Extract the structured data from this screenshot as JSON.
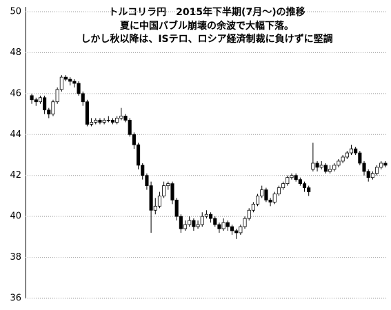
{
  "chart_data": {
    "type": "candlestick",
    "title": "トルコリラ円　2015年下半期(7月～)の推移",
    "subtitle": [
      "夏に中国バブル崩壊の余波で大幅下落。",
      "しかし秋以降は、ISテロ、ロシア経済制裁に負けずに堅調"
    ],
    "ylim": [
      36,
      50
    ],
    "yticks": [
      36,
      38,
      40,
      42,
      44,
      46,
      48,
      50
    ],
    "grid": true,
    "up_color": "#ffffff",
    "down_color": "#000000",
    "open": [
      45.9,
      45.7,
      45.6,
      45.8,
      45.2,
      45.0,
      45.6,
      46.2,
      46.8,
      46.7,
      46.6,
      46.5,
      46.0,
      45.6,
      44.5,
      44.6,
      44.7,
      44.6,
      44.7,
      44.7,
      44.6,
      44.8,
      44.9,
      44.7,
      44.0,
      43.5,
      42.5,
      42.0,
      41.5,
      40.3,
      40.5,
      41.0,
      41.5,
      41.6,
      40.8,
      40.0,
      39.4,
      39.6,
      39.8,
      39.5,
      39.6,
      40.0,
      40.1,
      39.9,
      39.6,
      39.4,
      39.7,
      39.5,
      39.3,
      39.2,
      39.5,
      39.9,
      40.3,
      40.6,
      41.0,
      41.3,
      40.8,
      40.7,
      41.1,
      41.4,
      41.6,
      41.9,
      42.0,
      41.8,
      41.6,
      41.4,
      42.3,
      42.6,
      42.4,
      42.5,
      42.2,
      42.3,
      42.5,
      42.7,
      42.9,
      43.1,
      43.3,
      43.1,
      42.6,
      42.2,
      41.9,
      42.1,
      42.4,
      42.6
    ],
    "high": [
      46.0,
      45.8,
      45.9,
      45.9,
      45.3,
      45.7,
      46.3,
      46.9,
      46.9,
      46.8,
      46.7,
      46.6,
      46.1,
      45.7,
      44.8,
      44.8,
      44.8,
      44.8,
      44.9,
      44.8,
      44.9,
      45.3,
      45.0,
      44.8,
      44.1,
      43.6,
      42.6,
      42.1,
      41.7,
      40.9,
      41.2,
      41.7,
      41.7,
      41.7,
      40.9,
      40.1,
      39.8,
      40.0,
      39.9,
      39.8,
      40.2,
      40.3,
      40.2,
      40.0,
      39.7,
      39.9,
      39.8,
      39.6,
      39.4,
      39.6,
      40.0,
      40.4,
      40.7,
      41.1,
      41.5,
      41.4,
      40.9,
      41.2,
      41.5,
      41.7,
      42.0,
      42.1,
      42.1,
      41.9,
      41.7,
      41.5,
      43.6,
      42.7,
      42.7,
      42.6,
      42.5,
      42.6,
      42.8,
      43.0,
      43.2,
      43.5,
      43.4,
      43.2,
      42.7,
      42.3,
      42.2,
      42.5,
      42.7,
      42.7
    ],
    "low": [
      45.5,
      45.4,
      45.5,
      45.0,
      44.8,
      44.9,
      45.5,
      46.1,
      46.6,
      46.4,
      46.3,
      45.9,
      45.4,
      44.4,
      44.4,
      44.5,
      44.5,
      44.5,
      44.6,
      44.5,
      44.5,
      44.7,
      44.6,
      43.9,
      43.3,
      42.3,
      41.8,
      41.3,
      39.2,
      40.1,
      40.4,
      40.9,
      41.3,
      40.6,
      39.8,
      39.2,
      39.3,
      39.5,
      39.3,
      39.4,
      39.5,
      39.9,
      39.7,
      39.5,
      39.2,
      39.3,
      39.3,
      39.1,
      38.9,
      39.1,
      39.4,
      39.8,
      40.2,
      40.5,
      40.9,
      40.7,
      40.5,
      40.6,
      41.0,
      41.3,
      41.5,
      41.8,
      41.7,
      41.5,
      41.2,
      41.0,
      42.2,
      42.2,
      42.3,
      42.1,
      42.1,
      42.2,
      42.4,
      42.6,
      42.8,
      43.0,
      43.0,
      42.5,
      42.0,
      41.7,
      41.8,
      42.0,
      42.3,
      42.4
    ],
    "close": [
      45.7,
      45.6,
      45.8,
      45.2,
      45.0,
      45.6,
      46.2,
      46.8,
      46.7,
      46.6,
      46.5,
      46.0,
      45.6,
      44.5,
      44.6,
      44.7,
      44.6,
      44.7,
      44.7,
      44.6,
      44.8,
      44.9,
      44.7,
      44.0,
      43.5,
      42.5,
      42.0,
      41.5,
      40.3,
      40.5,
      41.0,
      41.5,
      41.6,
      40.8,
      40.0,
      39.4,
      39.6,
      39.8,
      39.5,
      39.6,
      40.0,
      40.1,
      39.9,
      39.6,
      39.4,
      39.7,
      39.5,
      39.3,
      39.2,
      39.5,
      39.9,
      40.3,
      40.6,
      41.0,
      41.3,
      40.8,
      40.7,
      41.1,
      41.4,
      41.6,
      41.9,
      42.0,
      41.8,
      41.6,
      41.4,
      41.2,
      42.6,
      42.4,
      42.5,
      42.2,
      42.3,
      42.5,
      42.7,
      42.9,
      43.1,
      43.3,
      43.1,
      42.6,
      42.2,
      41.9,
      42.1,
      42.4,
      42.6,
      42.5
    ]
  }
}
